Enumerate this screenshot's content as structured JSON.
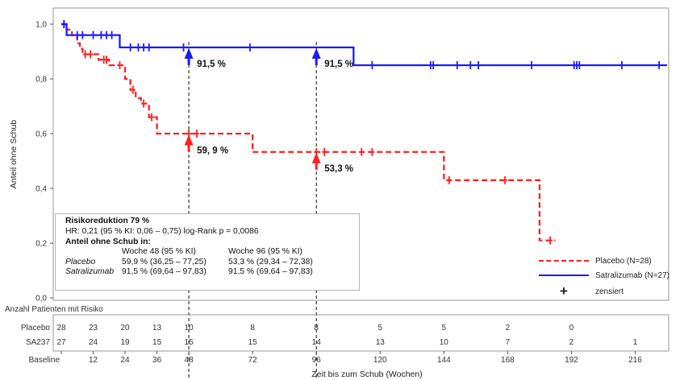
{
  "chart_data": {
    "type": "line",
    "xlabel": "Zeit bis zum Schub (Wochen)",
    "ylabel": "Anteil ohne Schub",
    "xlim": [
      0,
      228
    ],
    "ylim": [
      0,
      1.0
    ],
    "x_ticks": [
      0,
      12,
      24,
      36,
      48,
      72,
      96,
      120,
      144,
      168,
      192,
      216
    ],
    "x_tick_labels": [
      "Baseline",
      "12",
      "24",
      "36",
      "48",
      "72",
      "96",
      "120",
      "144",
      "168",
      "192",
      "216"
    ],
    "y_ticks": [
      0,
      0.2,
      0.4,
      0.6,
      0.8,
      1.0
    ],
    "y_tick_labels": [
      "0,0",
      "0,2",
      "0,4",
      "0,6",
      "0,8",
      "1,0"
    ],
    "series": [
      {
        "name": "Placebo (N=28)",
        "color": "#ff2020",
        "style": "dashed",
        "x": [
          0,
          2,
          4,
          6,
          7,
          8,
          10,
          13,
          14,
          15,
          18,
          22,
          24,
          26,
          28,
          30,
          33,
          36,
          40,
          72,
          100,
          144,
          150,
          180,
          186
        ],
        "y": [
          1.0,
          0.98,
          0.96,
          0.93,
          0.91,
          0.89,
          0.89,
          0.89,
          0.87,
          0.87,
          0.85,
          0.85,
          0.8,
          0.76,
          0.73,
          0.71,
          0.66,
          0.6,
          0.6,
          0.533,
          0.533,
          0.43,
          0.43,
          0.21,
          0.21
        ],
        "censored": [
          [
            1,
            1.0
          ],
          [
            9,
            0.89
          ],
          [
            11,
            0.89
          ],
          [
            16,
            0.87
          ],
          [
            17,
            0.87
          ],
          [
            22,
            0.85
          ],
          [
            27,
            0.76
          ],
          [
            31,
            0.71
          ],
          [
            34,
            0.66
          ],
          [
            48,
            0.6
          ],
          [
            51,
            0.6
          ],
          [
            96,
            0.533
          ],
          [
            99,
            0.533
          ],
          [
            113,
            0.533
          ],
          [
            117,
            0.533
          ],
          [
            146,
            0.43
          ],
          [
            167,
            0.43
          ],
          [
            184,
            0.21
          ]
        ]
      },
      {
        "name": "Satralizumab (N=27)",
        "color": "#1a1aff",
        "style": "solid",
        "x": [
          0,
          2,
          4,
          20,
          22,
          110,
          228
        ],
        "y": [
          1.0,
          0.96,
          0.96,
          0.96,
          0.915,
          0.85,
          0.85
        ],
        "censored": [
          [
            1,
            1.0
          ],
          [
            6,
            0.96
          ],
          [
            8,
            0.96
          ],
          [
            12,
            0.96
          ],
          [
            15,
            0.96
          ],
          [
            17,
            0.96
          ],
          [
            19,
            0.96
          ],
          [
            26,
            0.915
          ],
          [
            29,
            0.915
          ],
          [
            31,
            0.915
          ],
          [
            33,
            0.915
          ],
          [
            46,
            0.915
          ],
          [
            71,
            0.915
          ],
          [
            117,
            0.85
          ],
          [
            139,
            0.85
          ],
          [
            140,
            0.85
          ],
          [
            149,
            0.85
          ],
          [
            154,
            0.85
          ],
          [
            157,
            0.85
          ],
          [
            177,
            0.85
          ],
          [
            193,
            0.85
          ],
          [
            194,
            0.85
          ],
          [
            195,
            0.85
          ],
          [
            211,
            0.85
          ],
          [
            225,
            0.85
          ]
        ]
      }
    ],
    "annotations": [
      {
        "text": "91,5 %",
        "x": 48,
        "y": 0.915,
        "color": "#1a1aff"
      },
      {
        "text": "59, 9 %",
        "x": 48,
        "y": 0.599,
        "color": "#ff2020"
      },
      {
        "text": "91,5 %",
        "x": 96,
        "y": 0.915,
        "color": "#1a1aff"
      },
      {
        "text": "53,3 %",
        "x": 96,
        "y": 0.533,
        "color": "#ff2020"
      }
    ],
    "reference_weeks": [
      48,
      96
    ],
    "legend": {
      "placement": "bottom-right",
      "entries": [
        "Placebo (N=28)",
        "Satralizumab (N=27)",
        "zensiert"
      ]
    },
    "grid": false
  },
  "stats_box": {
    "title": "Risikoreduktion 79 %",
    "hr_line": "HR: 0,21 (95 % KI: 0,06 – 0,75) log-Rank p = 0,0086",
    "subtitle": "Anteil ohne Schub in:",
    "col_headers": [
      "",
      "Woche 48 (95 % KI)",
      "Woche 96 (95 % KI)"
    ],
    "rows": [
      [
        "Placebo",
        "59,9 % (36,25 – 77,25)",
        "53,3 % (29,34 – 72,38)"
      ],
      [
        "Satralizumab",
        "91,5 % (69,64 – 97,83)",
        "91,5 % (69,64 – 97,83)"
      ]
    ]
  },
  "legend": {
    "placebo": "Placebo (N=28)",
    "satralizumab": "Satralizumab (N=27)",
    "censored_symbol": "+",
    "censored": "zensiert"
  },
  "risk_table": {
    "title": "Anzahl Patienten mit Risiko",
    "rows": [
      {
        "label": "Placebo",
        "values": [
          "28",
          "23",
          "20",
          "13",
          "10",
          "8",
          "8",
          "5",
          "5",
          "2",
          "0",
          ""
        ]
      },
      {
        "label": "SA237",
        "values": [
          "27",
          "24",
          "19",
          "15",
          "15",
          "15",
          "14",
          "13",
          "10",
          "7",
          "2",
          "1"
        ]
      }
    ]
  }
}
